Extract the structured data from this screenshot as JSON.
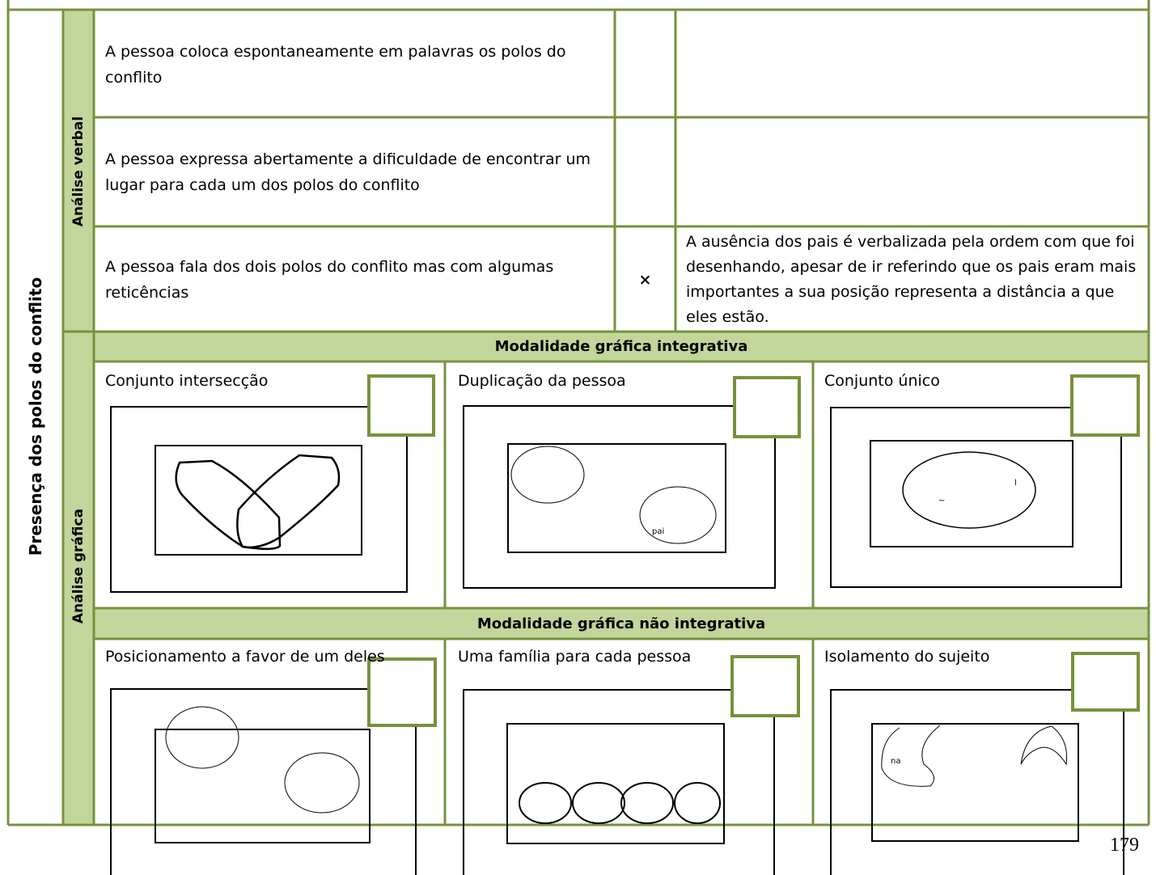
{
  "side_label": "Presença dos polos do conflito",
  "verbal": {
    "label": "Análise verbal",
    "rows": [
      {
        "item": "A pessoa coloca espontaneamente em palavras os polos do conflito"
      },
      {
        "item": "A pessoa expressa abertamente a dificuldade de encontrar um lugar para cada um dos polos do conflito"
      },
      {
        "item": "A pessoa fala dos dois polos do conflito mas com algumas reticências",
        "mark": "×",
        "note": "A ausência dos pais é verbalizada pela ordem com que foi desenhando, apesar de ir referindo que os pais eram mais importantes a sua posição representa a distância a que eles estão."
      }
    ]
  },
  "graphic": {
    "label": "Análise gráfica",
    "sections": [
      {
        "heading": "Modalidade gráfica integrativa",
        "cells": [
          {
            "label": "Conjunto intersecção"
          },
          {
            "label": "Duplicação da pessoa",
            "annotations": [
              "pai"
            ]
          },
          {
            "label": "Conjunto único",
            "annotations": [
              "~",
              "l"
            ]
          }
        ]
      },
      {
        "heading": "Modalidade gráfica não integrativa",
        "cells": [
          {
            "label": "Posicionamento a favor de um deles"
          },
          {
            "label": "Uma família para cada pessoa"
          },
          {
            "label": "Isolamento do sujeito",
            "annotations": [
              "na"
            ]
          }
        ]
      }
    ]
  },
  "page_number": "179"
}
